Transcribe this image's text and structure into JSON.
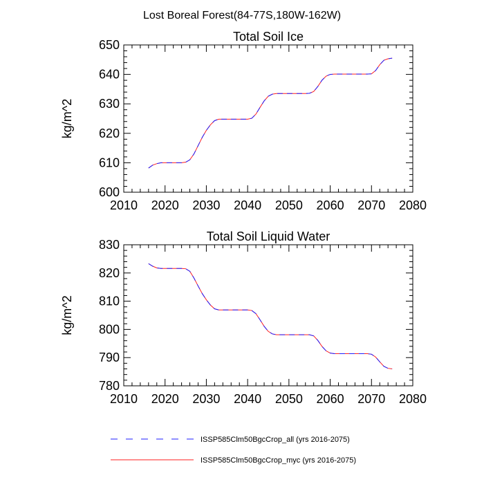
{
  "figure": {
    "title": "Lost Boreal Forest(84-77S,180W-162W)"
  },
  "chart_data": [
    {
      "type": "line",
      "title": "Total Soil Ice",
      "xlabel": "",
      "ylabel": "kg/m^2",
      "xlim": [
        2010,
        2080
      ],
      "ylim": [
        600,
        650
      ],
      "xticks": [
        2010,
        2020,
        2030,
        2040,
        2050,
        2060,
        2070,
        2080
      ],
      "yticks": [
        600,
        610,
        620,
        630,
        640,
        650
      ],
      "x": [
        2016,
        2017,
        2018,
        2019,
        2020,
        2021,
        2022,
        2023,
        2024,
        2025,
        2026,
        2027,
        2028,
        2029,
        2030,
        2031,
        2032,
        2033,
        2034,
        2035,
        2036,
        2037,
        2038,
        2039,
        2040,
        2041,
        2042,
        2043,
        2044,
        2045,
        2046,
        2047,
        2048,
        2049,
        2050,
        2051,
        2052,
        2053,
        2054,
        2055,
        2056,
        2057,
        2058,
        2059,
        2060,
        2061,
        2062,
        2063,
        2064,
        2065,
        2066,
        2067,
        2068,
        2069,
        2070,
        2071,
        2072,
        2073,
        2074,
        2075
      ],
      "series": [
        {
          "name": "ISSP585Clm50BgcCrop_all (yrs 2016-2075)",
          "color": "#1e1eff",
          "dash": "8,6",
          "values": [
            608.2,
            609.2,
            609.7,
            610.0,
            610.0,
            610.0,
            610.0,
            610.0,
            610.0,
            610.2,
            611.0,
            613.0,
            615.8,
            618.6,
            621.0,
            622.9,
            624.3,
            624.8,
            624.8,
            624.8,
            624.8,
            624.8,
            624.8,
            624.8,
            624.8,
            625.1,
            626.5,
            628.8,
            631.0,
            632.6,
            633.3,
            633.5,
            633.5,
            633.5,
            633.5,
            633.5,
            633.5,
            633.5,
            633.5,
            633.6,
            634.2,
            635.9,
            638.0,
            639.4,
            640.0,
            640.1,
            640.1,
            640.1,
            640.1,
            640.1,
            640.1,
            640.1,
            640.1,
            640.1,
            640.2,
            641.3,
            643.3,
            644.8,
            645.3,
            645.5
          ]
        },
        {
          "name": "ISSP585Clm50BgcCrop_myc (yrs 2016-2075)",
          "color": "#ff1e1e",
          "dash": "",
          "values": [
            608.2,
            609.2,
            609.7,
            610.0,
            610.0,
            610.0,
            610.0,
            610.0,
            610.0,
            610.2,
            611.0,
            613.0,
            615.8,
            618.6,
            621.0,
            622.9,
            624.3,
            624.8,
            624.8,
            624.8,
            624.8,
            624.8,
            624.8,
            624.8,
            624.8,
            625.1,
            626.5,
            628.8,
            631.0,
            632.6,
            633.3,
            633.5,
            633.5,
            633.5,
            633.5,
            633.5,
            633.5,
            633.5,
            633.5,
            633.6,
            634.2,
            635.9,
            638.0,
            639.4,
            640.0,
            640.1,
            640.1,
            640.1,
            640.1,
            640.1,
            640.1,
            640.1,
            640.1,
            640.1,
            640.2,
            641.3,
            643.3,
            644.8,
            645.3,
            645.5
          ]
        }
      ]
    },
    {
      "type": "line",
      "title": "Total Soil Liquid Water",
      "xlabel": "",
      "ylabel": "kg/m^2",
      "xlim": [
        2010,
        2080
      ],
      "ylim": [
        780,
        830
      ],
      "xticks": [
        2010,
        2020,
        2030,
        2040,
        2050,
        2060,
        2070,
        2080
      ],
      "yticks": [
        780,
        790,
        800,
        810,
        820,
        830
      ],
      "x": [
        2016,
        2017,
        2018,
        2019,
        2020,
        2021,
        2022,
        2023,
        2024,
        2025,
        2026,
        2027,
        2028,
        2029,
        2030,
        2031,
        2032,
        2033,
        2034,
        2035,
        2036,
        2037,
        2038,
        2039,
        2040,
        2041,
        2042,
        2043,
        2044,
        2045,
        2046,
        2047,
        2048,
        2049,
        2050,
        2051,
        2052,
        2053,
        2054,
        2055,
        2056,
        2057,
        2058,
        2059,
        2060,
        2061,
        2062,
        2063,
        2064,
        2065,
        2066,
        2067,
        2068,
        2069,
        2070,
        2071,
        2072,
        2073,
        2074,
        2075
      ],
      "series": [
        {
          "name": "ISSP585Clm50BgcCrop_all (yrs 2016-2075)",
          "color": "#1e1eff",
          "dash": "8,6",
          "values": [
            823.3,
            822.4,
            821.8,
            821.6,
            821.6,
            821.6,
            821.6,
            821.6,
            821.6,
            821.5,
            820.6,
            818.2,
            815.4,
            812.7,
            810.5,
            808.6,
            807.3,
            806.9,
            806.9,
            806.9,
            806.9,
            806.9,
            806.9,
            806.9,
            806.9,
            806.7,
            805.6,
            803.4,
            801.1,
            799.3,
            798.4,
            798.1,
            798.1,
            798.1,
            798.1,
            798.1,
            798.1,
            798.1,
            798.1,
            798.1,
            797.7,
            796.1,
            794.0,
            792.4,
            791.6,
            791.4,
            791.4,
            791.4,
            791.4,
            791.4,
            791.4,
            791.4,
            791.4,
            791.4,
            791.2,
            790.2,
            788.5,
            786.9,
            786.2,
            786.0
          ]
        },
        {
          "name": "ISSP585Clm50BgcCrop_myc (yrs 2016-2075)",
          "color": "#ff1e1e",
          "dash": "",
          "values": [
            823.3,
            822.4,
            821.8,
            821.6,
            821.6,
            821.6,
            821.6,
            821.6,
            821.6,
            821.5,
            820.6,
            818.2,
            815.4,
            812.7,
            810.5,
            808.6,
            807.3,
            806.9,
            806.9,
            806.9,
            806.9,
            806.9,
            806.9,
            806.9,
            806.9,
            806.7,
            805.6,
            803.4,
            801.1,
            799.3,
            798.4,
            798.1,
            798.1,
            798.1,
            798.1,
            798.1,
            798.1,
            798.1,
            798.1,
            798.1,
            797.7,
            796.1,
            794.0,
            792.4,
            791.6,
            791.4,
            791.4,
            791.4,
            791.4,
            791.4,
            791.4,
            791.4,
            791.4,
            791.4,
            791.2,
            790.2,
            788.5,
            786.9,
            786.2,
            786.0
          ]
        }
      ]
    }
  ],
  "legend": {
    "placement": "bottom",
    "items": [
      {
        "label": "ISSP585Clm50BgcCrop_all (yrs 2016-2075)",
        "color": "#1e1eff",
        "dash": "8,6"
      },
      {
        "label": "ISSP585Clm50BgcCrop_myc (yrs 2016-2075)",
        "color": "#ff1e1e",
        "dash": ""
      }
    ]
  }
}
